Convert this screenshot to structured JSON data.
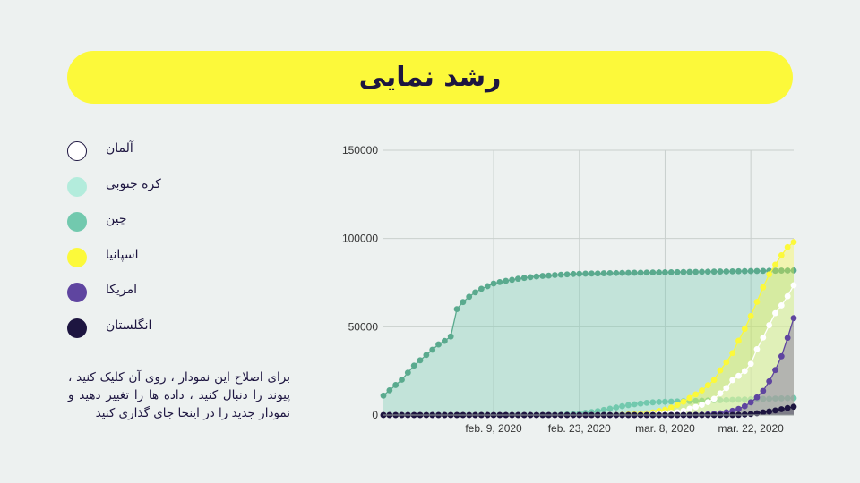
{
  "title": "رشد نمایی",
  "note": "برای اصلاح این نمودار ، روی آن کلیک کنید ، پیوند را دنبال کنید ، داده ها را تغییر دهید و نمودار جدید را در اینجا جای گذاری کنید",
  "legend": [
    {
      "label": "آلمان",
      "color": "#ffffff",
      "border": "#1d1540"
    },
    {
      "label": "کره جنوبی",
      "color": "#b3ecdc",
      "border": "#b3ecdc"
    },
    {
      "label": "چین",
      "color": "#72c9ae",
      "border": "#72c9ae"
    },
    {
      "label": "اسپانیا",
      "color": "#fcf93a",
      "border": "#fcf93a"
    },
    {
      "label": "امریکا",
      "color": "#5f45a0",
      "border": "#5f45a0"
    },
    {
      "label": "انگلستان",
      "color": "#1d1540",
      "border": "#1d1540"
    }
  ],
  "chart_data": {
    "type": "area",
    "x_start": "2020-01-22",
    "x_end": "2020-03-29",
    "x_ticks": [
      "feb. 9, 2020",
      "feb. 23, 2020",
      "mar. 8, 2020",
      "mar. 22, 2020"
    ],
    "y_ticks": [
      "0",
      "50000",
      "100000",
      "150000"
    ],
    "ylim": [
      0,
      150000
    ],
    "grid": true,
    "series": [
      {
        "name": "چین",
        "color": "#5aaa8e",
        "fill": "rgba(114,201,174,0.35)",
        "values": [
          11000,
          14000,
          17000,
          20000,
          24000,
          28000,
          31000,
          34000,
          37000,
          40000,
          42000,
          44500,
          60000,
          64000,
          67000,
          69500,
          71500,
          73000,
          74500,
          75300,
          76000,
          76600,
          77200,
          77700,
          78100,
          78500,
          78800,
          79000,
          79300,
          79500,
          79700,
          79900,
          80000,
          80100,
          80150,
          80200,
          80300,
          80400,
          80450,
          80500,
          80550,
          80600,
          80650,
          80700,
          80750,
          80800,
          80850,
          80900,
          80950,
          81000,
          81050,
          81100,
          81150,
          81200,
          81250,
          81300,
          81350,
          81400,
          81450,
          81500,
          81550,
          81600,
          81650,
          81700,
          81750,
          81800,
          81850,
          81900
        ]
      },
      {
        "name": "کره جنوبی",
        "color": "#72c9ae",
        "fill": "rgba(179,236,220,0.35)",
        "values": [
          0,
          0,
          0,
          0,
          0,
          0,
          0,
          0,
          0,
          0,
          0,
          0,
          0,
          0,
          0,
          0,
          0,
          0,
          0,
          0,
          0,
          0,
          0,
          0,
          0,
          0,
          0,
          0,
          100,
          200,
          350,
          600,
          900,
          1300,
          1700,
          2200,
          2900,
          3600,
          4300,
          5000,
          5600,
          6100,
          6500,
          6900,
          7200,
          7400,
          7500,
          7600,
          7700,
          7800,
          7900,
          8000,
          8100,
          8200,
          8300,
          8400,
          8500,
          8600,
          8700,
          8800,
          8900,
          9000,
          9100,
          9200,
          9300,
          9400,
          9500,
          9600
        ]
      },
      {
        "name": "اسپانیا",
        "color": "#fcf93a",
        "fill": "rgba(252,249,58,0.35)",
        "values": [
          0,
          0,
          0,
          0,
          0,
          0,
          0,
          0,
          0,
          0,
          0,
          0,
          0,
          0,
          0,
          0,
          0,
          0,
          0,
          0,
          0,
          0,
          0,
          0,
          0,
          0,
          0,
          0,
          0,
          0,
          0,
          0,
          0,
          0,
          0,
          0,
          0,
          50,
          100,
          200,
          350,
          500,
          700,
          1000,
          1500,
          2300,
          3000,
          4200,
          5800,
          7500,
          9700,
          11700,
          13900,
          16900,
          19900,
          25300,
          29900,
          35100,
          42100,
          48800,
          56100,
          64100,
          72300,
          79700,
          85200,
          90500,
          95100,
          98000
        ]
      },
      {
        "name": "آلمان",
        "color": "#ffffff",
        "fill": "rgba(255,255,255,0.25)",
        "values": [
          0,
          0,
          0,
          0,
          0,
          0,
          0,
          0,
          0,
          0,
          0,
          0,
          0,
          0,
          0,
          0,
          0,
          0,
          0,
          0,
          0,
          0,
          0,
          0,
          0,
          0,
          0,
          0,
          0,
          0,
          0,
          0,
          0,
          0,
          0,
          0,
          0,
          0,
          0,
          0,
          0,
          0,
          100,
          200,
          400,
          700,
          1000,
          1200,
          1600,
          2400,
          3600,
          4600,
          5800,
          7300,
          9200,
          12300,
          15300,
          19800,
          22200,
          24900,
          29000,
          37300,
          43900,
          50900,
          57700,
          62100,
          67300,
          73500
        ]
      },
      {
        "name": "امریکا",
        "color": "#5f45a0",
        "fill": "rgba(95,69,160,0.35)",
        "values": [
          0,
          0,
          0,
          0,
          0,
          0,
          0,
          0,
          0,
          0,
          0,
          0,
          0,
          0,
          0,
          0,
          0,
          0,
          0,
          0,
          0,
          0,
          0,
          0,
          0,
          0,
          0,
          0,
          0,
          0,
          0,
          0,
          0,
          0,
          0,
          0,
          0,
          0,
          0,
          0,
          0,
          0,
          0,
          0,
          0,
          0,
          0,
          0,
          0,
          0,
          0,
          100,
          200,
          400,
          700,
          1000,
          1600,
          2400,
          3500,
          5000,
          7200,
          10000,
          13700,
          19100,
          25500,
          33300,
          43700,
          54900
        ]
      },
      {
        "name": "انگلستان",
        "color": "#1d1540",
        "fill": "rgba(29,21,64,0.35)",
        "values": [
          0,
          0,
          0,
          0,
          0,
          0,
          0,
          0,
          0,
          0,
          0,
          0,
          0,
          0,
          0,
          0,
          0,
          0,
          0,
          0,
          0,
          0,
          0,
          0,
          0,
          0,
          0,
          0,
          0,
          0,
          0,
          0,
          0,
          0,
          0,
          0,
          0,
          0,
          0,
          0,
          0,
          0,
          0,
          0,
          0,
          0,
          0,
          0,
          0,
          0,
          0,
          0,
          0,
          0,
          0,
          0,
          0,
          0,
          100,
          300,
          600,
          1000,
          1500,
          2000,
          2600,
          3300,
          4000,
          4700
        ]
      }
    ]
  }
}
